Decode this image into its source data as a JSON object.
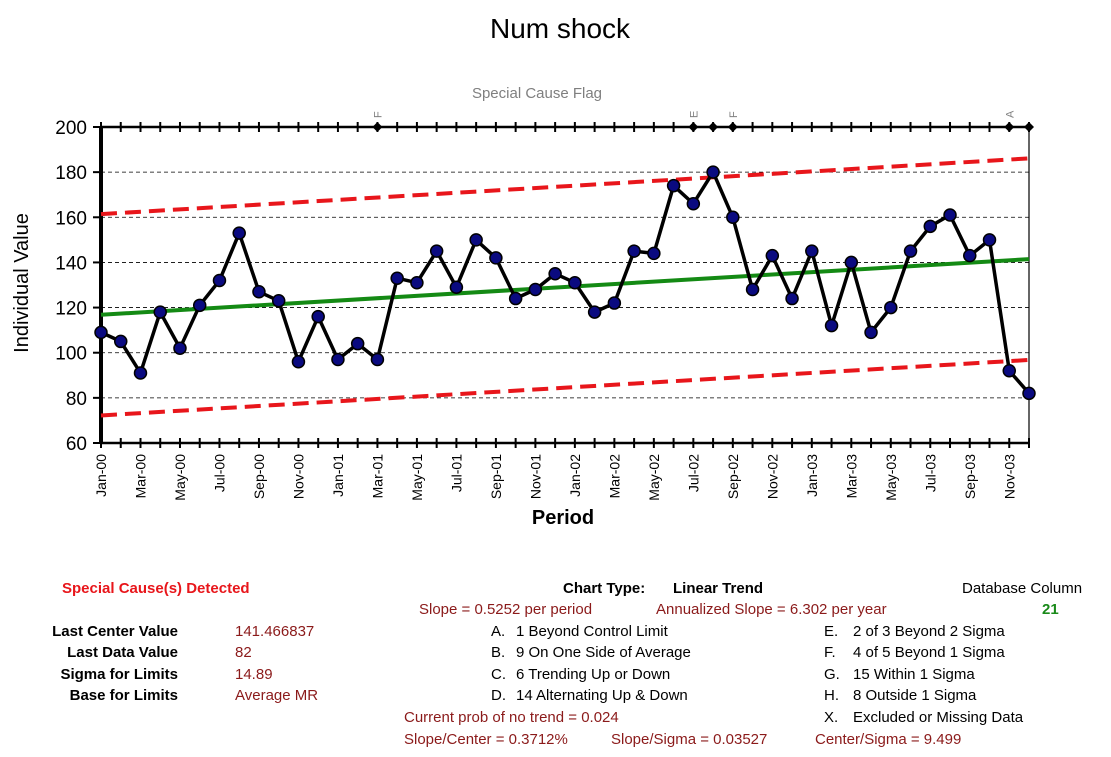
{
  "colors": {
    "data_line": "#000000",
    "marker_fill": "#0a0a80",
    "center_line": "#148a14",
    "control_limit": "#e8161b",
    "flag_label": "#7f7f7f",
    "stat_text": "#8b1a1a",
    "detected_text": "#e8161b",
    "db_column_value": "#1a8a1a"
  },
  "chart_data": {
    "type": "line",
    "title": "Num shock",
    "flag_row_label": "Special Cause Flag",
    "xlabel": "Period",
    "ylabel": "Individual Value",
    "ylim": [
      60,
      200
    ],
    "yticks": [
      60,
      80,
      100,
      120,
      140,
      160,
      180,
      200
    ],
    "grid": "horizontal dashed",
    "x_tick_labels": [
      "Jan-00",
      "Mar-00",
      "May-00",
      "Jul-00",
      "Sep-00",
      "Nov-00",
      "Jan-01",
      "Mar-01",
      "May-01",
      "Jul-01",
      "Sep-01",
      "Nov-01",
      "Jan-02",
      "Mar-02",
      "May-02",
      "Jul-02",
      "Sep-02",
      "Nov-02",
      "Jan-03",
      "Mar-03",
      "May-03",
      "Jul-03",
      "Sep-03",
      "Nov-03"
    ],
    "values": [
      109,
      105,
      91,
      118,
      102,
      121,
      132,
      153,
      127,
      123,
      96,
      116,
      97,
      104,
      97,
      133,
      131,
      145,
      129,
      150,
      142,
      124,
      128,
      135,
      131,
      118,
      122,
      145,
      144,
      174,
      166,
      180,
      160,
      128,
      143,
      124,
      145,
      112,
      140,
      109,
      120,
      145,
      156,
      161,
      143,
      150,
      92,
      82
    ],
    "center_line": {
      "start": 116.8,
      "end": 141.466837
    },
    "upper_limit": {
      "start": 161.4,
      "end": 186.1
    },
    "lower_limit": {
      "start": 72.2,
      "end": 96.8
    },
    "special_cause_flags": [
      {
        "period": "Mar-01",
        "label": "F"
      },
      {
        "period": "Jul-02",
        "label": "E"
      },
      {
        "period": "Aug-02",
        "label": ""
      },
      {
        "period": "Sep-02",
        "label": "F"
      },
      {
        "period": "Nov-03",
        "label": "A"
      },
      {
        "period": "Dec-03",
        "label": ""
      }
    ]
  },
  "summary": {
    "detected_label": "Special Cause(s) Detected",
    "chart_type_label": "Chart Type:",
    "chart_type_value": "Linear Trend",
    "db_column_label": "Database Column",
    "db_column_value": "21",
    "slope_text": "Slope = 0.5252 per period",
    "annualized_text": "Annualized Slope = 6.302 per year",
    "stats": [
      {
        "label": "Last Center Value",
        "value": "141.466837"
      },
      {
        "label": "Last Data Value",
        "value": "82"
      },
      {
        "label": "Sigma for Limits",
        "value": "14.89"
      },
      {
        "label": "Base for Limits",
        "value": "Average MR"
      }
    ],
    "rules_left": [
      {
        "code": "A.",
        "text": "1 Beyond Control Limit"
      },
      {
        "code": "B.",
        "text": "9 On One Side of Average"
      },
      {
        "code": "C.",
        "text": "6 Trending Up or Down"
      },
      {
        "code": "D.",
        "text": "14 Alternating  Up & Down"
      }
    ],
    "rules_right": [
      {
        "code": "E.",
        "text": "2 of 3 Beyond 2 Sigma"
      },
      {
        "code": "F.",
        "text": "4 of 5 Beyond 1 Sigma"
      },
      {
        "code": "G.",
        "text": "15 Within 1 Sigma"
      },
      {
        "code": "H.",
        "text": "8 Outside 1 Sigma"
      },
      {
        "code": "X.",
        "text": "Excluded or Missing Data"
      }
    ],
    "prob_text": "Current prob of no trend = 0.024",
    "slope_center_text": "Slope/Center = 0.3712%",
    "slope_sigma_text": "Slope/Sigma = 0.03527",
    "center_sigma_text": "Center/Sigma = 9.499"
  }
}
